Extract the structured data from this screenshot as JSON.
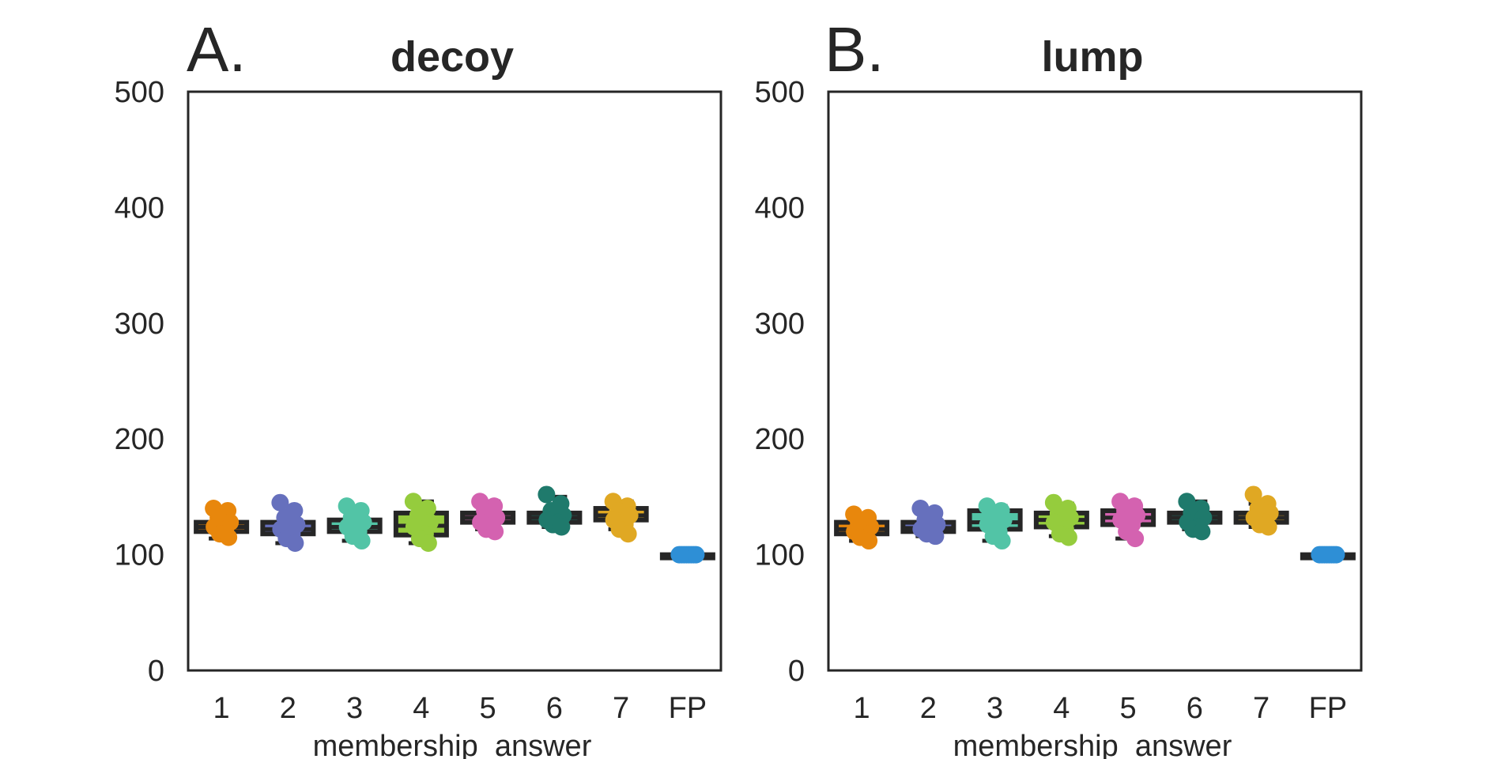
{
  "chart_data": [
    {
      "type": "boxplot+strip",
      "panel_label": "A.",
      "title": "decoy",
      "xlabel": "membership_answer",
      "ylabel": "",
      "ylim": [
        0,
        500
      ],
      "yticks": [
        0,
        100,
        200,
        300,
        400,
        500
      ],
      "categories": [
        "1",
        "2",
        "3",
        "4",
        "5",
        "6",
        "7",
        "FP"
      ],
      "colors": [
        "#e8870c",
        "#6670bd",
        "#52c4a6",
        "#95cc3d",
        "#d462b0",
        "#1f7a6c",
        "#e0a823",
        "#2e8fd6"
      ],
      "boxes": [
        {
          "q1": 120,
          "median": 124,
          "q3": 128,
          "whisker_low": 114,
          "whisker_high": 140
        },
        {
          "q1": 118,
          "median": 122,
          "q3": 128,
          "whisker_low": 110,
          "whisker_high": 142
        },
        {
          "q1": 120,
          "median": 124,
          "q3": 130,
          "whisker_low": 112,
          "whisker_high": 140
        },
        {
          "q1": 117,
          "median": 125,
          "q3": 136,
          "whisker_low": 110,
          "whisker_high": 146
        },
        {
          "q1": 128,
          "median": 132,
          "q3": 136,
          "whisker_low": 122,
          "whisker_high": 146
        },
        {
          "q1": 128,
          "median": 132,
          "q3": 136,
          "whisker_low": 124,
          "whisker_high": 150
        },
        {
          "q1": 130,
          "median": 134,
          "q3": 140,
          "whisker_low": 122,
          "whisker_high": 146
        },
        {
          "q1": 100,
          "median": 100,
          "q3": 100,
          "whisker_low": 100,
          "whisker_high": 100
        }
      ],
      "points": [
        [
          140,
          138,
          132,
          128,
          124,
          122,
          118,
          115
        ],
        [
          145,
          138,
          132,
          126,
          122,
          118,
          114,
          110
        ],
        [
          142,
          138,
          132,
          128,
          124,
          120,
          116,
          112
        ],
        [
          146,
          140,
          134,
          128,
          124,
          118,
          114,
          110
        ],
        [
          146,
          142,
          138,
          132,
          128,
          125,
          122,
          120
        ],
        [
          152,
          144,
          138,
          134,
          130,
          128,
          126,
          124
        ],
        [
          146,
          142,
          138,
          134,
          130,
          126,
          122,
          118
        ],
        [
          100,
          100,
          100,
          100,
          100,
          100,
          100,
          100
        ]
      ],
      "grid": false,
      "legend": "none"
    },
    {
      "type": "boxplot+strip",
      "panel_label": "B.",
      "title": "lump",
      "xlabel": "membership_answer",
      "ylabel": "",
      "ylim": [
        0,
        500
      ],
      "yticks": [
        0,
        100,
        200,
        300,
        400,
        500
      ],
      "categories": [
        "1",
        "2",
        "3",
        "4",
        "5",
        "6",
        "7",
        "FP"
      ],
      "colors": [
        "#e8870c",
        "#6670bd",
        "#52c4a6",
        "#95cc3d",
        "#d462b0",
        "#1f7a6c",
        "#e0a823",
        "#2e8fd6"
      ],
      "boxes": [
        {
          "q1": 118,
          "median": 122,
          "q3": 128,
          "whisker_low": 112,
          "whisker_high": 134
        },
        {
          "q1": 120,
          "median": 123,
          "q3": 128,
          "whisker_low": 116,
          "whisker_high": 138
        },
        {
          "q1": 122,
          "median": 128,
          "q3": 138,
          "whisker_low": 112,
          "whisker_high": 142
        },
        {
          "q1": 124,
          "median": 130,
          "q3": 136,
          "whisker_low": 116,
          "whisker_high": 144
        },
        {
          "q1": 126,
          "median": 132,
          "q3": 138,
          "whisker_low": 114,
          "whisker_high": 146
        },
        {
          "q1": 128,
          "median": 132,
          "q3": 136,
          "whisker_low": 122,
          "whisker_high": 146
        },
        {
          "q1": 128,
          "median": 132,
          "q3": 136,
          "whisker_low": 124,
          "whisker_high": 144
        },
        {
          "q1": 100,
          "median": 100,
          "q3": 100,
          "whisker_low": 100,
          "whisker_high": 100
        }
      ],
      "points": [
        [
          135,
          132,
          128,
          124,
          120,
          118,
          115,
          112
        ],
        [
          140,
          136,
          130,
          126,
          122,
          120,
          118,
          116
        ],
        [
          142,
          138,
          134,
          130,
          126,
          120,
          116,
          112
        ],
        [
          145,
          140,
          136,
          132,
          128,
          122,
          118,
          115
        ],
        [
          146,
          142,
          138,
          134,
          130,
          126,
          120,
          114
        ],
        [
          146,
          140,
          136,
          132,
          128,
          124,
          122,
          120
        ],
        [
          152,
          144,
          140,
          136,
          132,
          128,
          126,
          124
        ],
        [
          100,
          100,
          100,
          100,
          100,
          100,
          100,
          100
        ]
      ],
      "grid": false,
      "legend": "none"
    }
  ]
}
